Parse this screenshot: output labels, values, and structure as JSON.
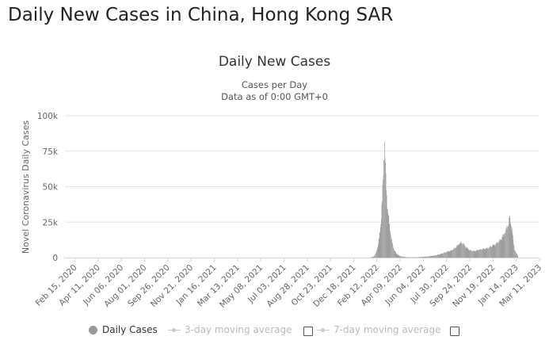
{
  "page": {
    "title": "Daily New Cases in China, Hong Kong SAR"
  },
  "legend": {
    "daily_label": "Daily Cases",
    "avg3_label": "3-day moving average",
    "avg7_label": "7-day moving average"
  },
  "colors": {
    "bars": "#9e9e9e",
    "grid": "#e6e6e6",
    "legend_inactive": "#bbbbbb"
  },
  "chart_data": {
    "type": "bar",
    "title": "Daily New Cases",
    "subtitle_lines": [
      "Cases per Day",
      "Data as of 0:00 GMT+0"
    ],
    "xlabel": "",
    "ylabel": "Novel Coronavirus Daily Cases",
    "ylim": [
      0,
      100000
    ],
    "y_ticks": [
      0,
      25000,
      50000,
      75000,
      100000
    ],
    "y_tick_labels": [
      "0",
      "25k",
      "50k",
      "75k",
      "100k"
    ],
    "x_range": [
      "2020-01-22",
      "2023-03-09"
    ],
    "x_tick_labels": [
      "Feb 15, 2020",
      "Apr 11, 2020",
      "Jun 06, 2020",
      "Aug 01, 2020",
      "Sep 26, 2020",
      "Nov 21, 2020",
      "Jan 16, 2021",
      "Mar 13, 2021",
      "May 08, 2021",
      "Jul 03, 2021",
      "Aug 28, 2021",
      "Oct 23, 2021",
      "Dec 18, 2021",
      "Feb 12, 2022",
      "Apr 09, 2022",
      "Jun 04, 2022",
      "Jul 30, 2022",
      "Sep 24, 2022",
      "Nov 19, 2022",
      "Jan 14, 2023",
      "Mar 11, 2023"
    ],
    "grid": true,
    "legend_position": "bottom",
    "series": [
      {
        "name": "Daily Cases",
        "points": [
          [
            "2022-01-25",
            0
          ],
          [
            "2022-02-01",
            400
          ],
          [
            "2022-02-05",
            1200
          ],
          [
            "2022-02-09",
            3000
          ],
          [
            "2022-02-12",
            6000
          ],
          [
            "2022-02-15",
            10000
          ],
          [
            "2022-02-18",
            16000
          ],
          [
            "2022-02-21",
            25000
          ],
          [
            "2022-02-24",
            40000
          ],
          [
            "2022-02-27",
            60000
          ],
          [
            "2022-03-01",
            78000
          ],
          [
            "2022-03-02",
            80000
          ],
          [
            "2022-03-03",
            72000
          ],
          [
            "2022-03-05",
            55000
          ],
          [
            "2022-03-07",
            42000
          ],
          [
            "2022-03-09",
            35000
          ],
          [
            "2022-03-11",
            30000
          ],
          [
            "2022-03-13",
            24000
          ],
          [
            "2022-03-16",
            18000
          ],
          [
            "2022-03-19",
            12000
          ],
          [
            "2022-03-22",
            8000
          ],
          [
            "2022-03-26",
            5000
          ],
          [
            "2022-03-30",
            3000
          ],
          [
            "2022-04-05",
            1500
          ],
          [
            "2022-04-12",
            700
          ],
          [
            "2022-04-20",
            400
          ],
          [
            "2022-05-01",
            200
          ],
          [
            "2022-05-15",
            200
          ],
          [
            "2022-06-01",
            500
          ],
          [
            "2022-06-15",
            800
          ],
          [
            "2022-07-01",
            1500
          ],
          [
            "2022-07-15",
            2500
          ],
          [
            "2022-07-30",
            4000
          ],
          [
            "2022-08-10",
            5000
          ],
          [
            "2022-08-20",
            7000
          ],
          [
            "2022-08-28",
            9500
          ],
          [
            "2022-09-03",
            10500
          ],
          [
            "2022-09-08",
            9500
          ],
          [
            "2022-09-15",
            7000
          ],
          [
            "2022-09-24",
            5000
          ],
          [
            "2022-10-05",
            4500
          ],
          [
            "2022-10-15",
            5500
          ],
          [
            "2022-10-25",
            6000
          ],
          [
            "2022-11-05",
            6500
          ],
          [
            "2022-11-15",
            8000
          ],
          [
            "2022-11-25",
            9500
          ],
          [
            "2022-12-05",
            12000
          ],
          [
            "2022-12-12",
            15000
          ],
          [
            "2022-12-18",
            18000
          ],
          [
            "2022-12-22",
            21000
          ],
          [
            "2022-12-25",
            23000
          ],
          [
            "2022-12-28",
            28000
          ],
          [
            "2022-12-30",
            26000
          ],
          [
            "2023-01-03",
            20000
          ],
          [
            "2023-01-06",
            12000
          ],
          [
            "2023-01-09",
            6000
          ],
          [
            "2023-01-13",
            3000
          ],
          [
            "2023-01-16",
            2500
          ],
          [
            "2023-01-18",
            0
          ]
        ]
      }
    ]
  }
}
